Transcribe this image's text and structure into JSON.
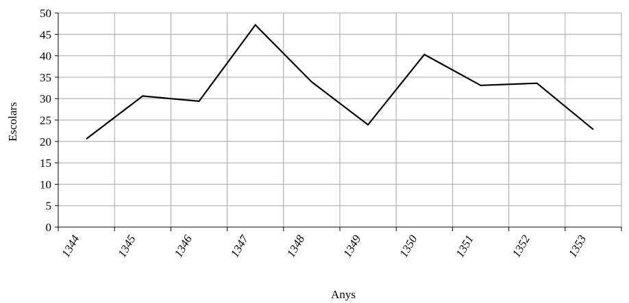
{
  "chart_data": {
    "type": "line",
    "title": "",
    "xlabel": "Anys",
    "ylabel": "Escolars",
    "categories": [
      "1344",
      "1345",
      "1346",
      "1347",
      "1348",
      "1349",
      "1350",
      "1351",
      "1352",
      "1353"
    ],
    "series": [
      {
        "values": [
          20.6,
          30.6,
          29.4,
          47.2,
          33.9,
          23.9,
          40.3,
          33.1,
          33.6,
          22.8
        ]
      }
    ],
    "ylim": [
      0,
      50
    ],
    "yticks": [
      "0",
      "5",
      "10",
      "15",
      "20",
      "25",
      "30",
      "35",
      "40",
      "45",
      "50"
    ],
    "grid": true,
    "legend": "none",
    "line_color": "#000000",
    "grid_color": "#a6a6a6"
  }
}
